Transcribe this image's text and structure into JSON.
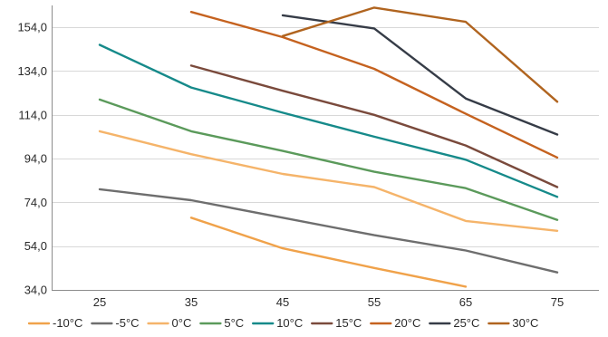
{
  "chart_data": {
    "type": "line",
    "title": "",
    "xlabel": "",
    "ylabel": "",
    "x": [
      25,
      35,
      45,
      55,
      65,
      75
    ],
    "x_tick_labels": [
      "25",
      "35",
      "45",
      "55",
      "65",
      "75"
    ],
    "ylim": [
      34,
      164
    ],
    "y_ticks": [
      34,
      54,
      74,
      94,
      114,
      134,
      154
    ],
    "y_tick_labels": [
      "34,0",
      "54,0",
      "74,0",
      "94,0",
      "114,0",
      "134,0",
      "154,0"
    ],
    "grid": true,
    "legend_position": "bottom",
    "series": [
      {
        "name": "-10°C",
        "color": "#f0a24a",
        "values": [
          null,
          67,
          53,
          44,
          35.5,
          null
        ]
      },
      {
        "name": "-5°C",
        "color": "#6e6e6e",
        "values": [
          80,
          75,
          67,
          59,
          52,
          42
        ]
      },
      {
        "name": "0°C",
        "color": "#f5b46a",
        "values": [
          106.5,
          96,
          87,
          81,
          65.5,
          61
        ]
      },
      {
        "name": "5°C",
        "color": "#5b9a5b",
        "values": [
          121,
          106.5,
          97.5,
          88,
          80.5,
          66
        ]
      },
      {
        "name": "10°C",
        "color": "#168a8a",
        "values": [
          146,
          126.5,
          115,
          104,
          93.5,
          76.5
        ]
      },
      {
        "name": "15°C",
        "color": "#7a4a3c",
        "values": [
          null,
          136.5,
          125,
          114,
          100,
          81
        ]
      },
      {
        "name": "20°C",
        "color": "#c5621f",
        "values": [
          null,
          161,
          149.5,
          135,
          114.5,
          94.5
        ]
      },
      {
        "name": "25°C",
        "color": "#363c47",
        "values": [
          null,
          null,
          159.5,
          153.5,
          121.5,
          105
        ]
      },
      {
        "name": "30°C",
        "color": "#b0641f",
        "values": [
          null,
          null,
          150,
          163,
          156.5,
          120
        ]
      }
    ]
  }
}
